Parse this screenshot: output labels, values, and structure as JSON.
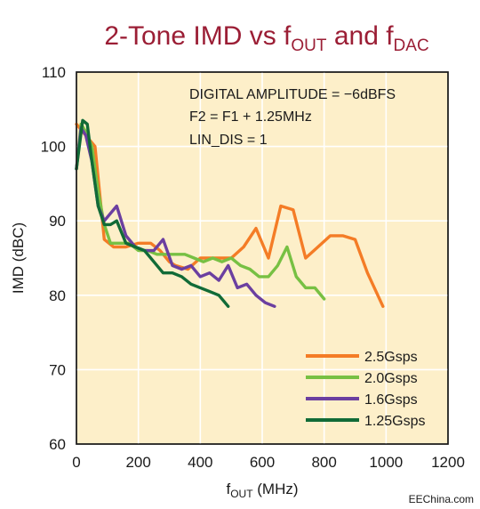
{
  "chart_data": {
    "type": "line",
    "title": {
      "main": "2-Tone IMD vs f",
      "sub1": "OUT",
      "mid": " and f",
      "sub2": "DAC"
    },
    "xlabel": {
      "main": "f",
      "sub": "OUT",
      "rest": " (MHz)"
    },
    "ylabel": "IMD (dBC)",
    "xlim": [
      0,
      1200
    ],
    "ylim": [
      60,
      110
    ],
    "xticks": [
      0,
      200,
      400,
      600,
      800,
      1000,
      1200
    ],
    "yticks": [
      60,
      70,
      80,
      90,
      100,
      110
    ],
    "grid": true,
    "legend_position": "bottom-right",
    "annotations": [
      "DIGITAL AMPLITUDE = −6dBFS",
      "F2 = F1 + 1.25MHz",
      "LIN_DIS = 1"
    ],
    "series": [
      {
        "name": "2.5Gsps",
        "color": "#f47c26",
        "x": [
          0,
          20,
          40,
          60,
          90,
          120,
          160,
          200,
          240,
          270,
          300,
          320,
          360,
          400,
          430,
          470,
          500,
          540,
          580,
          620,
          660,
          700,
          740,
          780,
          820,
          860,
          900,
          940,
          990
        ],
        "y": [
          103,
          102,
          101,
          100,
          87.5,
          86.5,
          86.5,
          87,
          87,
          86,
          84.5,
          84,
          83.5,
          85,
          85,
          85,
          85,
          86.5,
          89,
          85,
          92,
          91.5,
          85,
          86.5,
          88,
          88,
          87.5,
          83,
          78.5
        ]
      },
      {
        "name": "2.0Gsps",
        "color": "#77c043",
        "x": [
          0,
          15,
          30,
          50,
          70,
          90,
          110,
          140,
          170,
          200,
          230,
          260,
          290,
          320,
          350,
          380,
          410,
          440,
          470,
          500,
          530,
          560,
          590,
          620,
          650,
          680,
          710,
          740,
          770,
          800
        ],
        "y": [
          97,
          103,
          102,
          100,
          94,
          89.5,
          87,
          87,
          87,
          86,
          86,
          85.5,
          85.5,
          85.5,
          85.5,
          85,
          84.5,
          85,
          84.5,
          85,
          84,
          83.5,
          82.5,
          82.5,
          84,
          86.5,
          82.5,
          81,
          81,
          79.5
        ]
      },
      {
        "name": "1.6Gsps",
        "color": "#6b3fa0",
        "x": [
          0,
          15,
          30,
          50,
          70,
          90,
          110,
          130,
          160,
          190,
          220,
          250,
          280,
          310,
          340,
          370,
          400,
          430,
          460,
          490,
          520,
          550,
          580,
          610,
          640
        ],
        "y": [
          97,
          102.5,
          101.5,
          98,
          92,
          90,
          91,
          92,
          88,
          86.5,
          86,
          86,
          87.5,
          84,
          83.5,
          84,
          82.5,
          83,
          82,
          84,
          81,
          81.5,
          80,
          79,
          78.5
        ]
      },
      {
        "name": "1.25Gsps",
        "color": "#116b37",
        "x": [
          0,
          20,
          35,
          50,
          70,
          90,
          110,
          130,
          160,
          190,
          220,
          250,
          280,
          310,
          340,
          370,
          400,
          430,
          460,
          490
        ],
        "y": [
          97,
          103.5,
          103,
          98,
          92,
          89.5,
          89.5,
          90,
          87,
          86.5,
          86,
          84.5,
          83,
          83,
          82.5,
          81.5,
          81,
          80.5,
          80,
          78.5
        ]
      }
    ]
  },
  "watermark": "EEChina.com"
}
